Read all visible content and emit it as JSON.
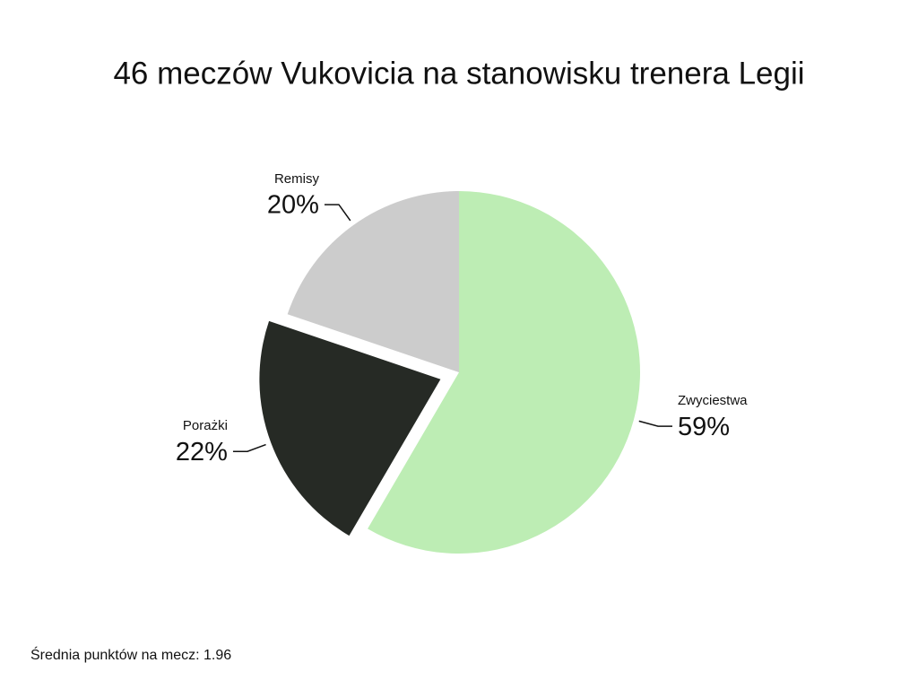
{
  "chart_data": {
    "type": "pie",
    "title": "46 meczów Vukovicia na stanowisku trenera Legii",
    "categories": [
      "Zwyciestwa",
      "Porażki",
      "Remisy"
    ],
    "values": [
      59,
      22,
      20
    ],
    "value_labels": [
      "59%",
      "22%",
      "20%"
    ],
    "colors": [
      "#bdedb4",
      "#262a25",
      "#cccccc"
    ],
    "explode": [
      false,
      true,
      false
    ],
    "note": "Średnia punktów na mecz: 1.96"
  }
}
